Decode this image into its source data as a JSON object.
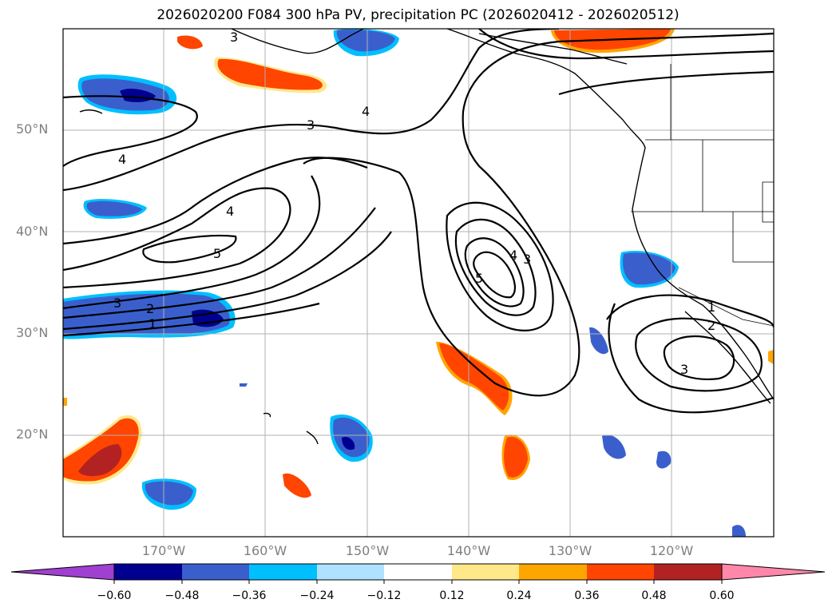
{
  "title": "2026020200 F084 300 hPa PV, precipitation PC (2026020412 - 2026020512)",
  "lat_labels": [
    "50°N",
    "40°N",
    "30°N",
    "20°N"
  ],
  "lon_labels": [
    "170°W",
    "160°W",
    "150°W",
    "140°W",
    "130°W",
    "120°W"
  ],
  "colorbar": {
    "colors": [
      "#a040d0",
      "#000090",
      "#3a5fcd",
      "#00bfff",
      "#b0e2ff",
      "#ffffff",
      "#ffe88a",
      "#ffa500",
      "#ff4500",
      "#b22222",
      "#ff88aa"
    ],
    "labels": [
      "−0.60",
      "−0.48",
      "−0.36",
      "−0.24",
      "−0.12",
      "0.12",
      "0.24",
      "0.36",
      "0.48",
      "0.60"
    ]
  },
  "contour_labels": [
    "3",
    "4",
    "3",
    "4",
    "4",
    "5",
    "3",
    "2",
    "1",
    "4",
    "3",
    "5",
    "2",
    "3",
    "1"
  ]
}
